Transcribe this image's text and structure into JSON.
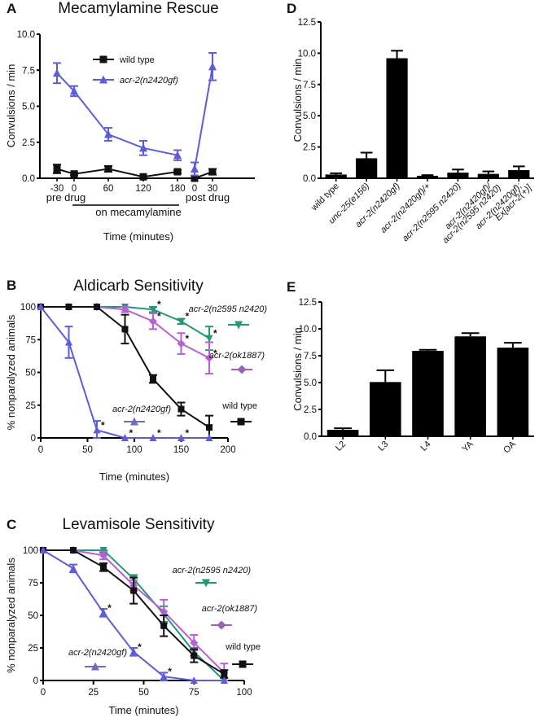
{
  "colors": {
    "wild_type": "#111111",
    "gf": "#5b5ce6",
    "gf_legend": "#6a6fc4",
    "double": "#1f9b6e",
    "ok1887": "#b75fd8",
    "ok1887_legend": "#9a62b0",
    "bar": "#000000"
  },
  "chart_data": [
    {
      "id": "A",
      "panel_letter": "A",
      "type": "line",
      "title": "Mecamylamine Rescue",
      "xlabel": "Time (minutes)",
      "ylabel": "Convulsions / min",
      "ylim": [
        0,
        10
      ],
      "yticks": [
        "0.0",
        "2.5",
        "5.0",
        "7.5",
        "10.0"
      ],
      "x_tick_labels": [
        "-30",
        "0",
        "60",
        "120",
        "180",
        "0",
        "30"
      ],
      "phase_labels": {
        "pre": "pre drug",
        "on": "on mecamylamine",
        "post": "post drug"
      },
      "legend_placement": "top-center",
      "series": [
        {
          "name": "wild type",
          "legend_style": "normal",
          "color_key": "wild_type",
          "marker": "square",
          "segments": [
            [
              0,
              1,
              2,
              3,
              4
            ],
            [
              5,
              6
            ]
          ],
          "values": [
            0.65,
            0.3,
            0.65,
            0.1,
            0.45,
            0.0,
            0.45
          ],
          "errors": [
            0.3,
            0.1,
            0.2,
            0.05,
            0.1,
            0.05,
            0.2
          ]
        },
        {
          "name": "acr-2(n2420gf)",
          "legend_style": "italic",
          "color_key": "gf",
          "marker": "triangle-up",
          "segments": [
            [
              0,
              1,
              2,
              3,
              4
            ],
            [
              5,
              6
            ]
          ],
          "values": [
            7.3,
            6.05,
            3.05,
            2.1,
            1.6,
            0.65,
            7.75
          ],
          "errors": [
            0.7,
            0.35,
            0.45,
            0.5,
            0.35,
            0.45,
            0.95
          ]
        }
      ]
    },
    {
      "id": "B",
      "panel_letter": "B",
      "type": "line",
      "title": "Aldicarb Sensitivity",
      "xlabel": "Time (minutes)",
      "ylabel": "% nonparalyzed animals",
      "xlim": [
        0,
        200
      ],
      "ylim": [
        0,
        100
      ],
      "xticks": [
        "0",
        "50",
        "100",
        "150",
        "200"
      ],
      "yticks": [
        "0",
        "25",
        "50",
        "75",
        "100"
      ],
      "series": [
        {
          "name": "acr-2(n2420gf)",
          "color_key": "gf",
          "legend_color_key": "gf_legend",
          "marker": "triangle-up",
          "x": [
            0,
            30,
            60,
            90,
            120,
            150,
            180
          ],
          "values": [
            100,
            73,
            6,
            0,
            0,
            0,
            0
          ],
          "errors": [
            0,
            12,
            7,
            0,
            0,
            0,
            0
          ]
        },
        {
          "name": "wild type",
          "color_key": "wild_type",
          "marker": "square",
          "x": [
            0,
            30,
            60,
            90,
            120,
            150,
            180
          ],
          "values": [
            100,
            100,
            100,
            83,
            45,
            22,
            8
          ],
          "errors": [
            0,
            0,
            0,
            11,
            3,
            5,
            9
          ]
        },
        {
          "name": "acr-2(ok1887)",
          "color_key": "ok1887",
          "legend_color_key": "ok1887_legend",
          "marker": "diamond",
          "x": [
            0,
            30,
            60,
            90,
            120,
            150,
            180
          ],
          "values": [
            100,
            100,
            100,
            98,
            89,
            72,
            61
          ],
          "errors": [
            0,
            0,
            0,
            2,
            6,
            8,
            12
          ]
        },
        {
          "name": "acr-2(n2595 n2420)",
          "color_key": "double",
          "marker": "triangle-down",
          "x": [
            0,
            30,
            60,
            90,
            120,
            150,
            180
          ],
          "values": [
            100,
            100,
            100,
            100,
            98,
            89,
            76
          ],
          "errors": [
            0,
            0,
            0,
            0,
            2,
            2,
            9
          ]
        }
      ],
      "significance_marks": [
        {
          "x": 60,
          "y": 6,
          "label": "*"
        },
        {
          "x": 90,
          "y": 0,
          "label": "*"
        },
        {
          "x": 120,
          "y": 0,
          "label": "*"
        },
        {
          "x": 150,
          "y": 0,
          "label": "*"
        },
        {
          "x": 120,
          "y": 98,
          "label": "*"
        },
        {
          "x": 150,
          "y": 89,
          "label": "*"
        },
        {
          "x": 180,
          "y": 76,
          "label": "*"
        },
        {
          "x": 120,
          "y": 89,
          "label": "*"
        },
        {
          "x": 150,
          "y": 72,
          "label": "*"
        },
        {
          "x": 180,
          "y": 61,
          "label": "*"
        }
      ],
      "legend_placement": "inline-right"
    },
    {
      "id": "C",
      "panel_letter": "C",
      "type": "line",
      "title": "Levamisole Sensitivity",
      "xlabel": "Time (minutes)",
      "ylabel": "% nonparalyzed animals",
      "xlim": [
        0,
        100
      ],
      "ylim": [
        0,
        100
      ],
      "xticks": [
        "0",
        "25",
        "50",
        "75",
        "100"
      ],
      "yticks": [
        "0",
        "25",
        "50",
        "75",
        "100"
      ],
      "series": [
        {
          "name": "acr-2(n2420gf)",
          "color_key": "gf",
          "legend_color_key": "gf_legend",
          "marker": "triangle-up",
          "x": [
            0,
            15,
            30,
            45,
            60,
            75,
            90
          ],
          "values": [
            100,
            86,
            52,
            22,
            3,
            0,
            0
          ],
          "errors": [
            0,
            3,
            3,
            3,
            3,
            0,
            0
          ]
        },
        {
          "name": "wild type",
          "color_key": "wild_type",
          "marker": "square",
          "x": [
            0,
            15,
            30,
            45,
            60,
            75,
            90
          ],
          "values": [
            100,
            100,
            87,
            69,
            42,
            19,
            5
          ],
          "errors": [
            0,
            0,
            3,
            10,
            8,
            5,
            3
          ]
        },
        {
          "name": "acr-2(ok1887)",
          "color_key": "ok1887",
          "legend_color_key": "ok1887_legend",
          "marker": "diamond",
          "x": [
            0,
            15,
            30,
            45,
            60,
            75,
            90
          ],
          "values": [
            100,
            100,
            96,
            73,
            53,
            29,
            6
          ],
          "errors": [
            0,
            0,
            3,
            4,
            9,
            6,
            7
          ]
        },
        {
          "name": "acr-2(n2595 n2420)",
          "color_key": "double",
          "marker": "triangle-down",
          "x": [
            0,
            15,
            30,
            45,
            60,
            75,
            90
          ],
          "values": [
            100,
            100,
            100,
            78,
            51,
            22,
            0
          ],
          "errors": [
            0,
            0,
            2,
            3,
            6,
            3,
            0
          ]
        }
      ],
      "significance_marks": [
        {
          "x": 30,
          "y": 52,
          "label": "*"
        },
        {
          "x": 45,
          "y": 22,
          "label": "*"
        },
        {
          "x": 60,
          "y": 3,
          "label": "*"
        }
      ],
      "legend_placement": "inline-right"
    },
    {
      "id": "D",
      "panel_letter": "D",
      "type": "bar",
      "title": "",
      "ylabel": "Convulsions / min",
      "ylim": [
        0,
        12.5
      ],
      "yticks": [
        "0.0",
        "2.5",
        "5.0",
        "7.5",
        "10.0",
        "12.5"
      ],
      "categories": [
        [
          "wild type"
        ],
        [
          "unc-25(e156)"
        ],
        [
          "acr-2(n2420gf)"
        ],
        [
          "acr-2(n2420gf)/+"
        ],
        [
          "acr-2(n2595 n2420)"
        ],
        [
          "acr-2(n2420gf)/",
          "acr-2(n2595 n2420)"
        ],
        [
          "acr-2(n2420gf);",
          "Ex[acr-2(+)]"
        ]
      ],
      "category_italic": [
        false,
        true,
        true,
        true,
        true,
        true,
        true
      ],
      "values": [
        0.3,
        1.6,
        9.6,
        0.2,
        0.45,
        0.35,
        0.65
      ],
      "errors": [
        0.1,
        0.45,
        0.6,
        0.05,
        0.25,
        0.2,
        0.3
      ]
    },
    {
      "id": "E",
      "panel_letter": "E",
      "type": "bar",
      "title": "",
      "ylabel": "Convulsions / min",
      "ylim": [
        0,
        12.5
      ],
      "yticks": [
        "0.0",
        "2.5",
        "5.0",
        "7.5",
        "10.0",
        "12.5"
      ],
      "categories": [
        [
          "L2"
        ],
        [
          "L3"
        ],
        [
          "L4"
        ],
        [
          "YA"
        ],
        [
          "OA"
        ]
      ],
      "category_italic": [
        false,
        false,
        false,
        false,
        false
      ],
      "values": [
        0.6,
        5.05,
        7.95,
        9.3,
        8.25
      ],
      "errors": [
        0.15,
        1.1,
        0.1,
        0.3,
        0.45
      ]
    }
  ]
}
